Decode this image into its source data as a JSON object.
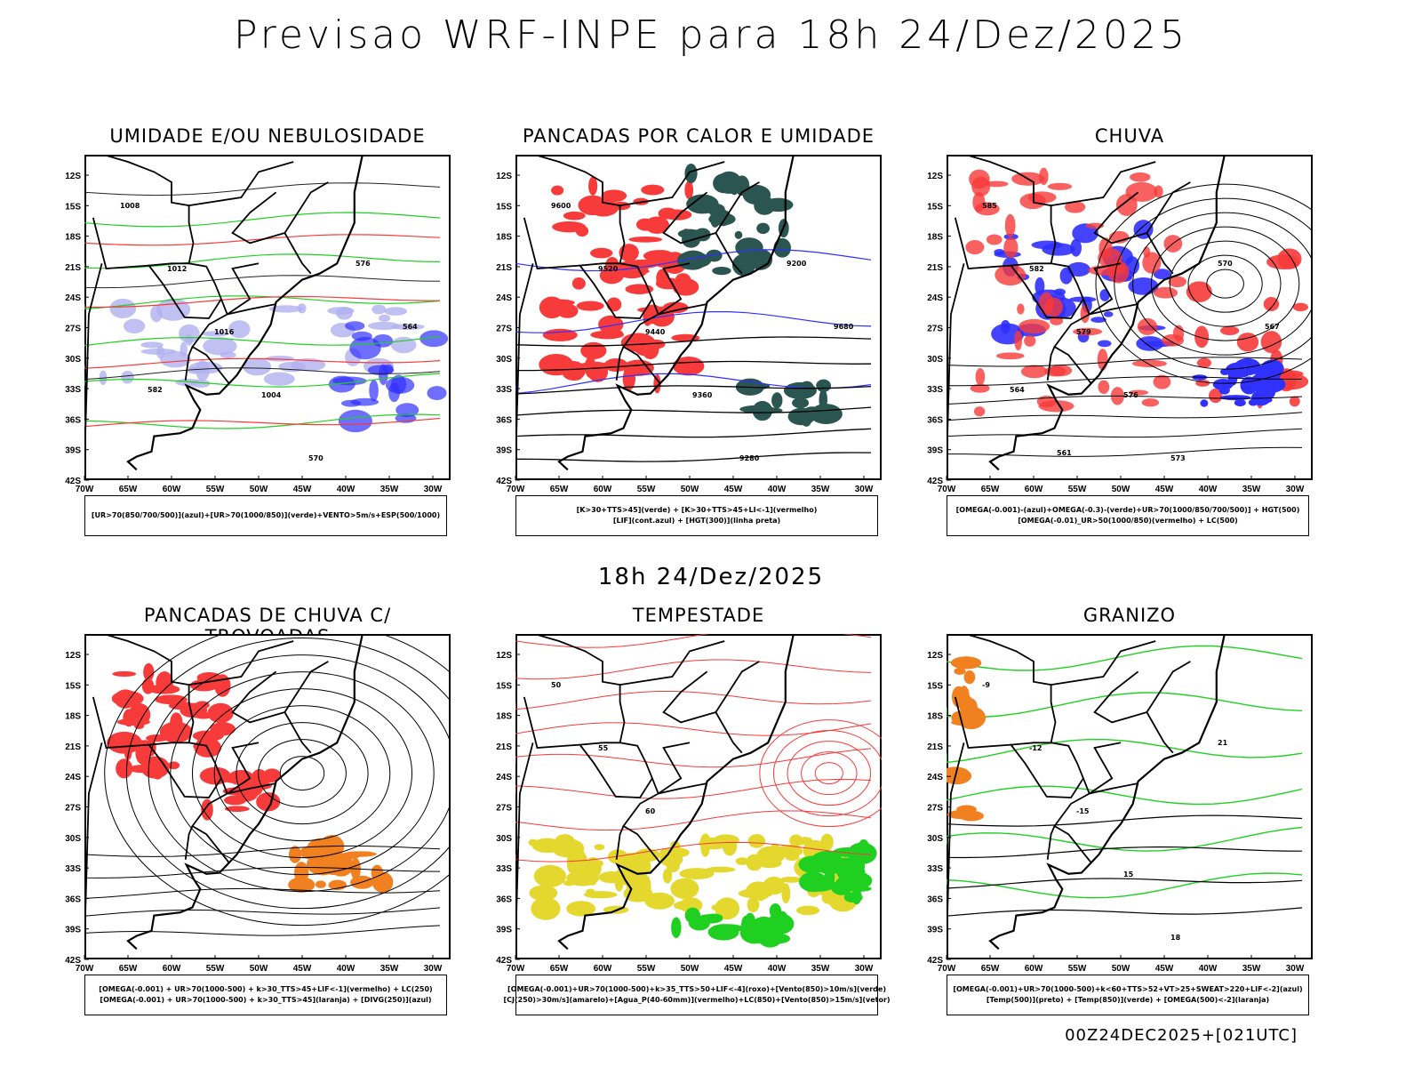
{
  "title": "Previsao WRF-INPE  para 18h 24/Dez/2025",
  "middle_label": "18h 24/Dez/2025",
  "footer": "00Z24DEC2025+[021UTC]",
  "axes": {
    "lat_ticks": [
      "12S",
      "15S",
      "18S",
      "21S",
      "24S",
      "27S",
      "30S",
      "33S",
      "36S",
      "39S",
      "42S"
    ],
    "lon_ticks": [
      "70W",
      "65W",
      "60W",
      "55W",
      "50W",
      "45W",
      "40W",
      "35W",
      "30W"
    ]
  },
  "panels": [
    {
      "title": "UMIDADE E/OU NEBULOSIDADE",
      "legend": [
        "[UR>70(850/700/500)](azul)+[UR>70(1000/850)](verde)+VENTO>5m/s+ESP(500/1000)"
      ],
      "contour_labels": [
        "1008",
        "1012",
        "1016",
        "1004",
        "570",
        "576",
        "564",
        "582"
      ]
    },
    {
      "title": "PANCADAS POR CALOR E UMIDADE",
      "legend": [
        "[K>30+TTS>45](verde) + [K>30+TTS>45+LI<-1](vermelho)",
        "[LIF](cont.azul) + [HGT(300)](linha preta)"
      ],
      "contour_labels": [
        "9600",
        "9520",
        "9440",
        "9360",
        "9280",
        "9200",
        "9680"
      ]
    },
    {
      "title": "CHUVA",
      "legend": [
        "[OMEGA(-0.001)-(azul)+OMEGA(-0.3)-(verde)+UR>70(1000/850/700/500)] + HGT(500)",
        "[OMEGA(-0.01)_UR>50(1000/850)(vermelho) + LC(500)"
      ],
      "contour_labels": [
        "585",
        "582",
        "579",
        "576",
        "573",
        "570",
        "567",
        "564",
        "561"
      ]
    },
    {
      "title": "PANCADAS DE CHUVA C/ TROVOADAS",
      "legend": [
        "[OMEGA(-0.001) + UR>70(1000-500) + k>30_TTS>45+LIF<-1](vermelho) + LC(250)",
        "[OMEGA(-0.001) + UR>70(1000-500) + k>30_TTS>45](laranja) + [DIVG(250)](azul)"
      ],
      "contour_labels": []
    },
    {
      "title": "TEMPESTADE",
      "legend": [
        "[OMEGA(-0.001)+UR>70(1000-500)+k>35_TTS>50+LIF<-4](roxo)+[Vento(850)>10m/s](verde)",
        "[CJ(250)>30m/s](amarelo)+[Agua_P(40-60mm)](vermelho)+LC(850)+[Vento(850)>15m/s](vetor)"
      ],
      "contour_labels": [
        "50",
        "55",
        "60"
      ]
    },
    {
      "title": "GRANIZO",
      "legend": [
        "[OMEGA(-0.001)+UR>70(1000-500)+k<60+TTS>52+VT>25+SWEAT>220+LIF<-2](azul)",
        "[Temp(500)](preto) + [Temp(850)](verde) + [OMEGA(500)<-2](laranja)"
      ],
      "contour_labels": [
        "-9",
        "-12",
        "-15",
        "15",
        "18",
        "21"
      ]
    }
  ],
  "colors": {
    "red": "#f73a3a",
    "blue": "#3030ff",
    "lightblue": "#b0b0f0",
    "green": "#20d020",
    "darkteal": "#2a5550",
    "yellow": "#e4d82e",
    "orange": "#f08020"
  }
}
